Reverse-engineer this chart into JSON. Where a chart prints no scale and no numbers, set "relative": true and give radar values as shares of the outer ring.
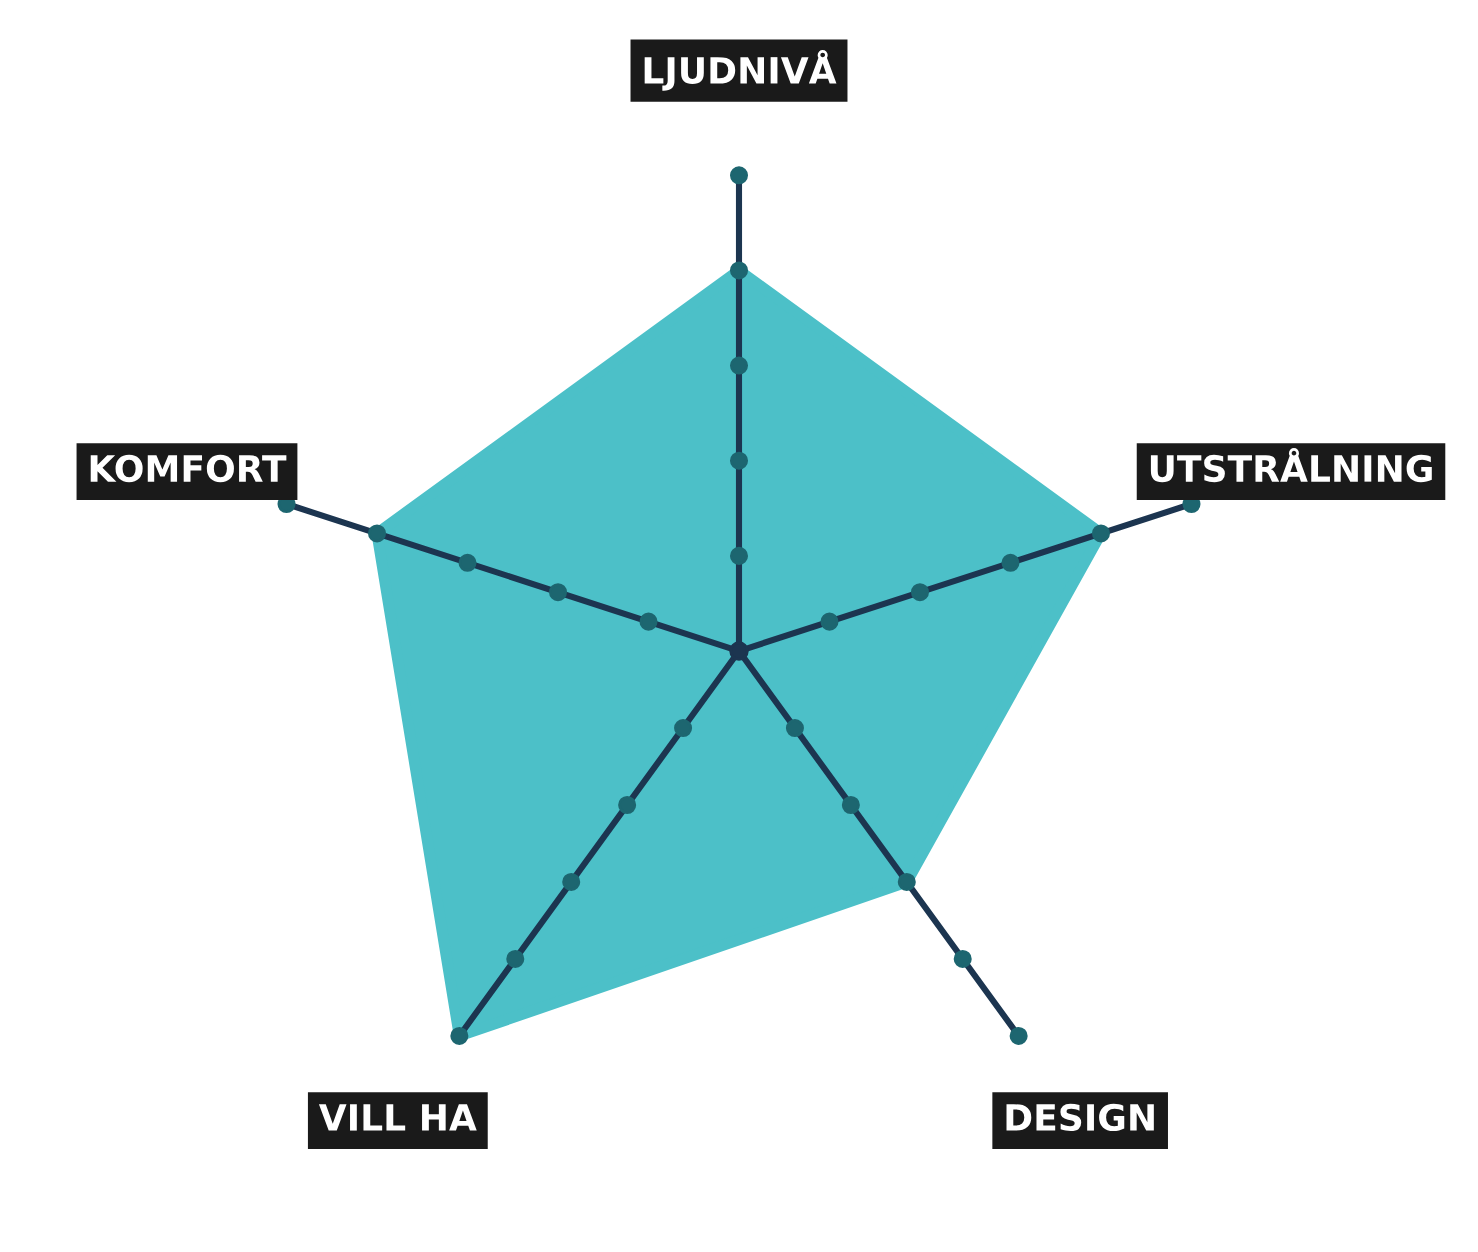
{
  "chart_data": {
    "type": "radar",
    "relative": true,
    "categories": [
      "LJUDNIVÅ",
      "UTSTRÅLNING",
      "DESIGN",
      "VILL HA",
      "KOMFORT"
    ],
    "series": [
      {
        "color": "#4cc0c8",
        "values": [
          0.8,
          0.8,
          0.6,
          1.0,
          0.8
        ]
      }
    ],
    "grid": false,
    "legend": false
  }
}
